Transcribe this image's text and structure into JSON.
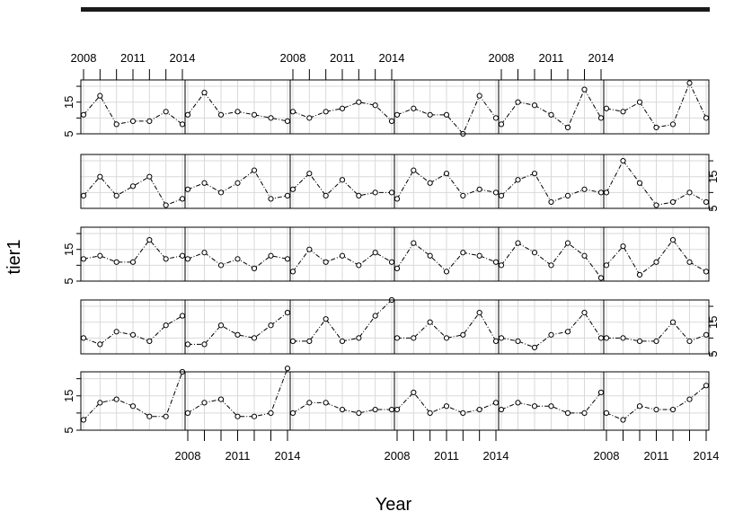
{
  "chart_data": {
    "type": "line",
    "layout": "trellis grid: 5 rows x 6 columns",
    "xlabel": "Year",
    "ylabel": "tier1",
    "x": [
      2008,
      2009,
      2010,
      2011,
      2012,
      2013,
      2014
    ],
    "x_ticklabels": [
      "2008",
      "2011",
      "2014"
    ],
    "xlim": [
      2008,
      2014
    ],
    "ylim": [
      5,
      22
    ],
    "y_ticklabels": [
      "5",
      "15"
    ],
    "grid": true,
    "marker": "open-circle",
    "line_style": "dash-dot",
    "rows": [
      {
        "panels": [
          {
            "values": [
              11,
              17,
              8,
              9,
              9,
              12,
              8
            ]
          },
          {
            "values": [
              11,
              18,
              11,
              12,
              11,
              10,
              9
            ]
          },
          {
            "values": [
              12,
              10,
              12,
              13,
              15,
              14,
              9
            ]
          },
          {
            "values": [
              11,
              13,
              11,
              11,
              5,
              17,
              10
            ]
          },
          {
            "values": [
              8,
              15,
              14,
              11,
              7,
              19,
              10
            ]
          },
          {
            "values": [
              13,
              12,
              15,
              7,
              8,
              21,
              10
            ]
          }
        ]
      },
      {
        "panels": [
          {
            "values": [
              9,
              15,
              9,
              12,
              15,
              6,
              8
            ]
          },
          {
            "values": [
              11,
              13,
              10,
              13,
              17,
              8,
              9
            ]
          },
          {
            "values": [
              11,
              16,
              9,
              14,
              9,
              10,
              10
            ]
          },
          {
            "values": [
              8,
              17,
              13,
              16,
              9,
              11,
              10
            ]
          },
          {
            "values": [
              9,
              14,
              16,
              7,
              9,
              11,
              10
            ]
          },
          {
            "values": [
              10,
              20,
              13,
              6,
              7,
              10,
              7
            ]
          }
        ]
      },
      {
        "panels": [
          {
            "values": [
              12,
              13,
              11,
              11,
              18,
              12,
              13
            ]
          },
          {
            "values": [
              12,
              14,
              10,
              12,
              9,
              13,
              12
            ]
          },
          {
            "values": [
              8,
              15,
              11,
              13,
              10,
              14,
              11
            ]
          },
          {
            "values": [
              9,
              17,
              13,
              8,
              14,
              13,
              11
            ]
          },
          {
            "values": [
              10,
              17,
              14,
              10,
              17,
              13,
              6
            ]
          },
          {
            "values": [
              10,
              16,
              7,
              11,
              18,
              11,
              8
            ]
          }
        ]
      },
      {
        "panels": [
          {
            "values": [
              10,
              8,
              12,
              11,
              9,
              14,
              17
            ]
          },
          {
            "values": [
              8,
              8,
              14,
              11,
              10,
              14,
              18
            ]
          },
          {
            "values": [
              9,
              9,
              16,
              9,
              10,
              17,
              22
            ]
          },
          {
            "values": [
              10,
              10,
              15,
              10,
              11,
              18,
              9
            ]
          },
          {
            "values": [
              10,
              9,
              7,
              11,
              12,
              18,
              10
            ]
          },
          {
            "values": [
              10,
              10,
              9,
              9,
              15,
              9,
              11
            ]
          }
        ]
      },
      {
        "panels": [
          {
            "values": [
              8,
              13,
              14,
              12,
              9,
              9,
              22
            ]
          },
          {
            "values": [
              10,
              13,
              14,
              9,
              9,
              10,
              23
            ]
          },
          {
            "values": [
              10,
              13,
              13,
              11,
              10,
              11,
              11
            ]
          },
          {
            "values": [
              11,
              16,
              10,
              12,
              10,
              11,
              13
            ]
          },
          {
            "values": [
              11,
              13,
              12,
              12,
              10,
              10,
              16
            ]
          },
          {
            "values": [
              10,
              8,
              12,
              11,
              11,
              14,
              18
            ]
          }
        ]
      }
    ]
  }
}
